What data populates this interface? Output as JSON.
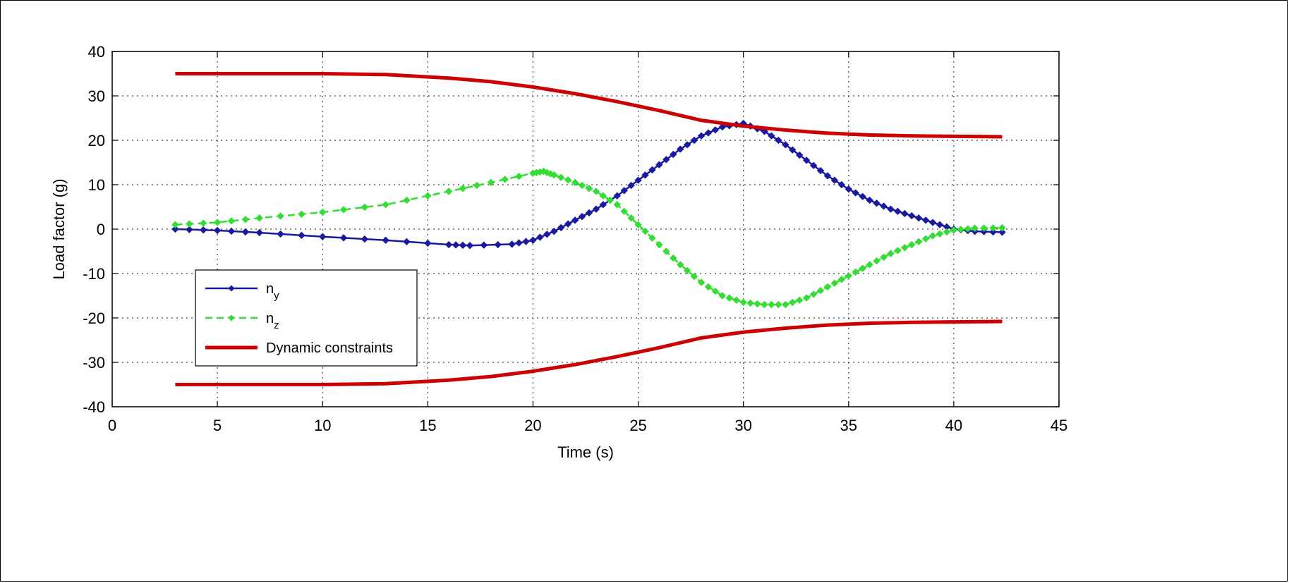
{
  "chart_data": {
    "type": "line",
    "title": "",
    "xlabel": "Time (s)",
    "ylabel": "Load factor (g)",
    "xlim": [
      0,
      45
    ],
    "ylim": [
      -40,
      40
    ],
    "xticks": [
      0,
      5,
      10,
      15,
      20,
      25,
      30,
      35,
      40,
      45
    ],
    "yticks": [
      -40,
      -30,
      -20,
      -10,
      0,
      10,
      20,
      30,
      40
    ],
    "xtick_labels": [
      "0",
      "5",
      "10",
      "15",
      "20",
      "25",
      "30",
      "35",
      "40",
      "45"
    ],
    "ytick_labels": [
      "-40",
      "-30",
      "-20",
      "-10",
      "0",
      "10",
      "20",
      "30",
      "40"
    ],
    "grid": true,
    "legend_position": "lower-left",
    "colors": {
      "ny": "#1a1aa0",
      "nz": "#33dd33",
      "constraint": "#cc0000"
    },
    "series": [
      {
        "name": "ny",
        "legend_main": "n",
        "legend_sub": "y",
        "style": "solid-marker",
        "x": [
          3,
          5,
          7,
          10,
          13,
          16,
          17,
          19,
          20,
          21,
          22,
          23,
          24,
          25,
          26,
          27,
          28,
          29,
          30,
          31,
          32,
          33,
          34,
          35,
          36,
          37,
          38,
          39,
          40,
          41,
          42.3
        ],
        "y": [
          0,
          -0.3,
          -0.8,
          -1.7,
          -2.5,
          -3.5,
          -3.7,
          -3.4,
          -2.5,
          -0.5,
          2,
          4.5,
          7.5,
          11,
          14.5,
          18,
          21,
          23,
          23.8,
          22,
          19,
          15.5,
          12,
          9,
          6.5,
          4.5,
          3,
          1.5,
          0,
          -0.5,
          -0.7
        ]
      },
      {
        "name": "nz",
        "legend_main": "n",
        "legend_sub": "z",
        "style": "dashed-marker",
        "x": [
          3,
          5,
          7,
          10,
          13,
          16,
          18,
          20,
          20.5,
          21,
          22,
          23,
          24,
          25,
          26,
          27,
          28,
          29,
          30,
          31,
          32,
          33,
          34,
          35,
          36,
          37,
          38,
          39,
          40,
          41,
          42.3
        ],
        "y": [
          1,
          1.5,
          2.5,
          3.8,
          5.5,
          8.5,
          10.5,
          12.6,
          13,
          12.2,
          10.5,
          8.5,
          5.5,
          1,
          -3.5,
          -8,
          -12,
          -15,
          -16.5,
          -17,
          -17,
          -15.5,
          -13,
          -10.5,
          -8,
          -5.5,
          -3.5,
          -1.5,
          -0.2,
          0.2,
          0.3
        ]
      },
      {
        "name": "Dynamic constraints",
        "style": "thick",
        "x": [
          3,
          10,
          13,
          16,
          18,
          20,
          22,
          24,
          26,
          28,
          30,
          32,
          34,
          36,
          38,
          40,
          42.3
        ],
        "y": [
          35,
          35,
          34.8,
          34,
          33.2,
          32,
          30.5,
          28.7,
          26.7,
          24.5,
          23.2,
          22.3,
          21.6,
          21.2,
          21,
          20.9,
          20.8
        ]
      },
      {
        "name": "Dynamic constraints (lower)",
        "legend": false,
        "style": "thick",
        "x": [
          3,
          10,
          13,
          16,
          18,
          20,
          22,
          24,
          26,
          28,
          30,
          32,
          34,
          36,
          38,
          40,
          42.3
        ],
        "y": [
          -35,
          -35,
          -34.8,
          -34,
          -33.2,
          -32,
          -30.5,
          -28.7,
          -26.7,
          -24.5,
          -23.2,
          -22.3,
          -21.6,
          -21.2,
          -21,
          -20.9,
          -20.8
        ]
      }
    ]
  }
}
